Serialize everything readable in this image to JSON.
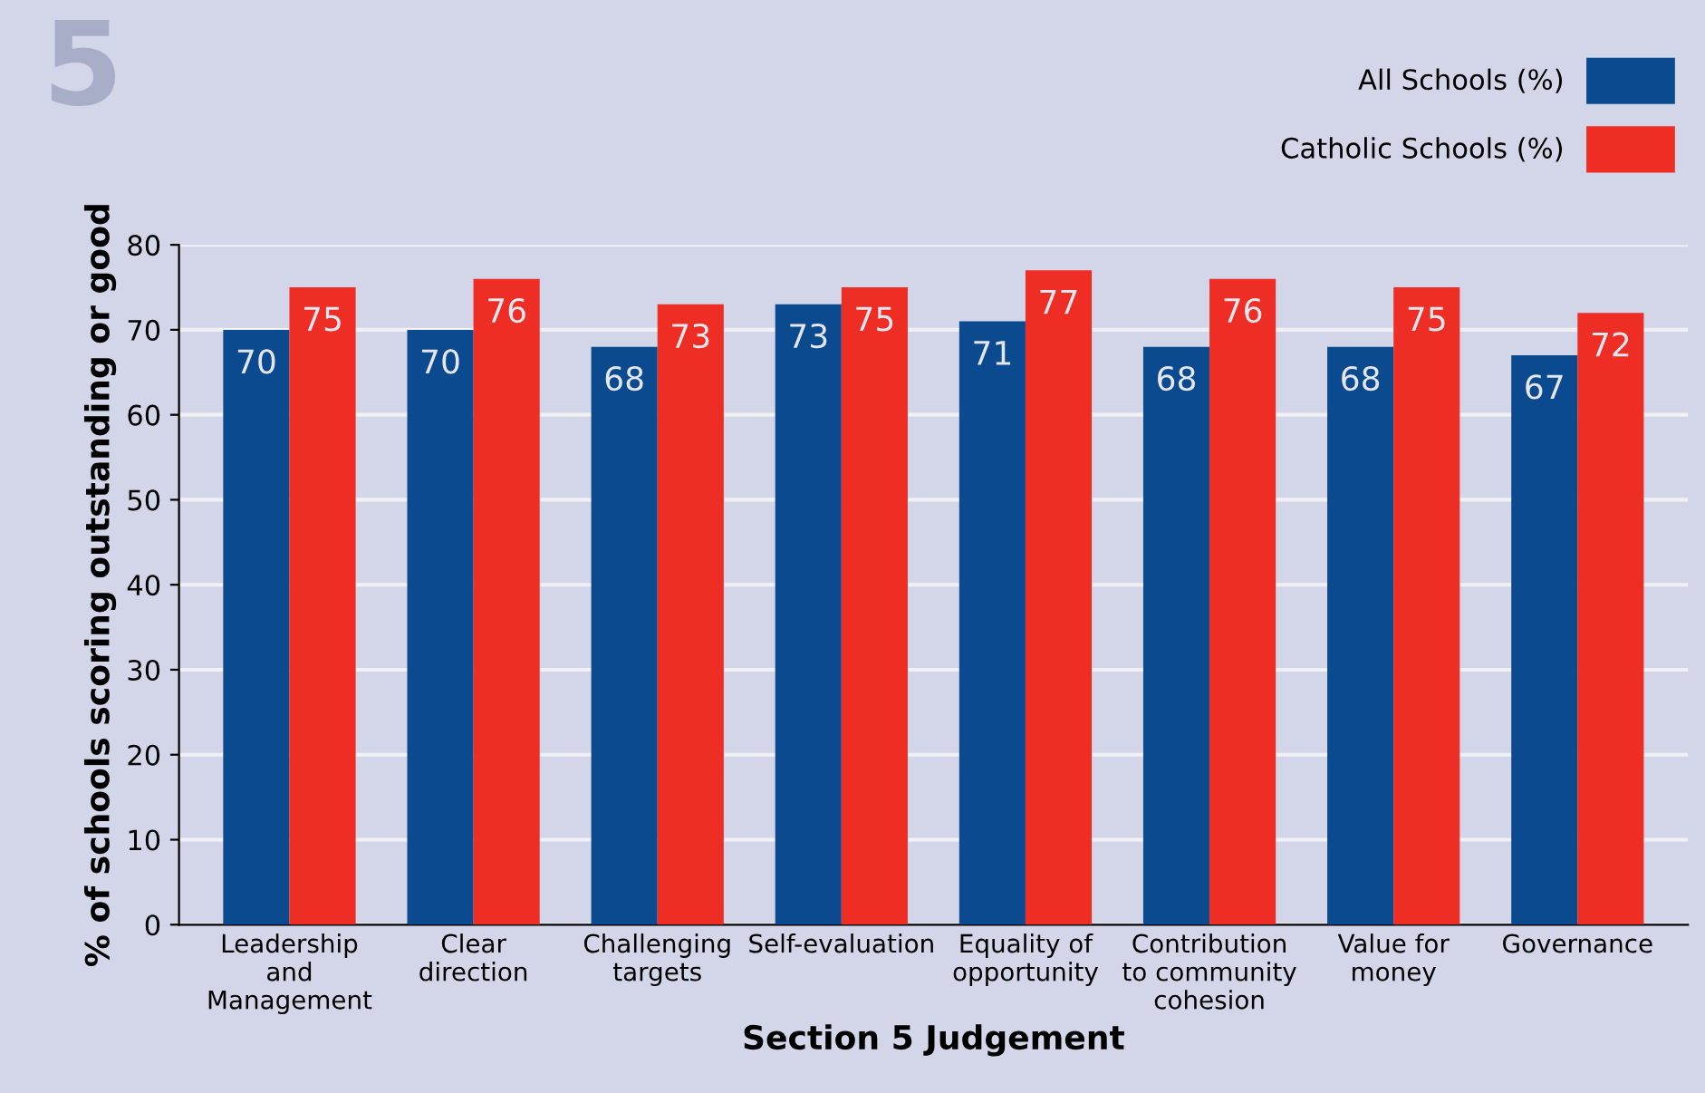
{
  "chart_data": {
    "type": "bar",
    "title": "5",
    "xlabel": "Section 5 Judgement",
    "ylabel": "% of schools scoring outstanding or good",
    "categories": [
      "Leadership\nand\nManagement",
      "Clear\ndirection",
      "Challenging\ntargets",
      "Self-evaluation",
      "Equality of\nopportunity",
      "Contribution\nto community\ncohesion",
      "Value for\nmoney",
      "Governance"
    ],
    "series": [
      {
        "name": "All Schools (%)",
        "color": "#0b4a8f",
        "values": [
          70,
          70,
          68,
          73,
          71,
          68,
          68,
          67
        ]
      },
      {
        "name": "Catholic Schools (%)",
        "color": "#ee2e24",
        "values": [
          75,
          76,
          73,
          75,
          77,
          76,
          75,
          72
        ]
      }
    ],
    "ylim": [
      0,
      80
    ],
    "yticks": [
      0,
      10,
      20,
      30,
      40,
      50,
      60,
      70,
      80
    ],
    "grid": "y",
    "legend": "top right",
    "data_labels": true
  }
}
